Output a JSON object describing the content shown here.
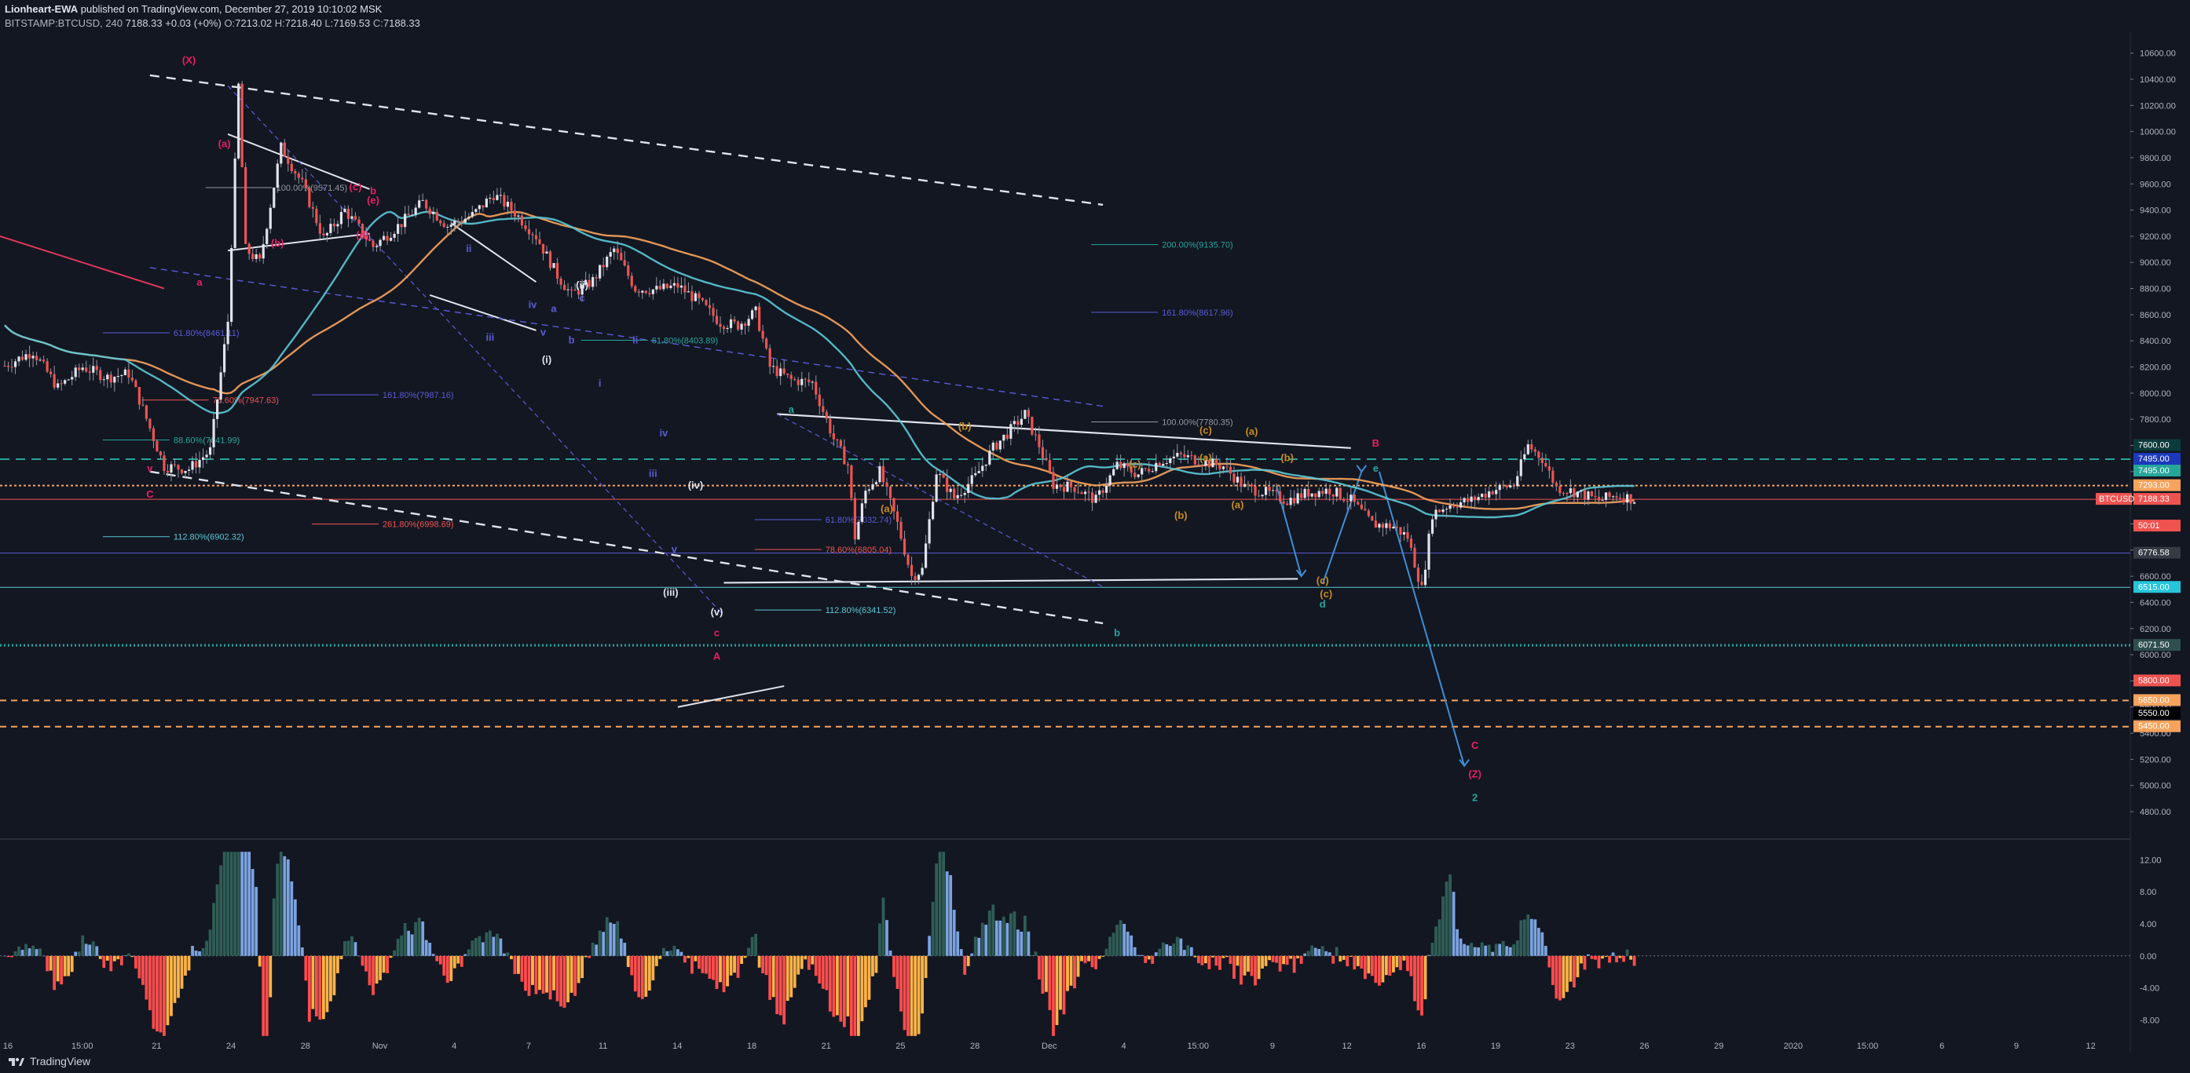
{
  "header": {
    "publisher": "Lionheart-EWA",
    "published_text": "published on TradingView.com, December 27, 2019 10:10:02 MSK",
    "symbol": "BITSTAMP:BTCUSD, 240",
    "last": "7188.33",
    "change": "+0.03 (+0%)",
    "o_label": "O:",
    "o": "7213.02",
    "h_label": "H:",
    "h": "7218.40",
    "l_label": "L:",
    "l": "7169.53",
    "c_label": "C:",
    "c": "7188.33"
  },
  "footer": {
    "brand": "TradingView"
  },
  "colors": {
    "background": "#131722",
    "up": "#e0e3eb",
    "down": "#ef5350",
    "ema_orange": "#f7a35c",
    "ema_cyan": "#5bc8d6",
    "red_line": "#e0385a",
    "wave_blue": "#5b5bd6",
    "magenta": "#e91e63",
    "teal": "#26a69a",
    "gold": "#c98b1f",
    "osc_dark": "#2f5d56",
    "osc_blue": "#7ba3e0",
    "osc_red": "#ff4d4d",
    "osc_orange": "#ffb347"
  },
  "chart_data": {
    "type": "candlestick",
    "symbol": "BTCUSD",
    "ylim": [
      4650,
      10700
    ],
    "y_ticks": [
      "10600.00",
      "10400.00",
      "10200.00",
      "10000.00",
      "9800.00",
      "9600.00",
      "9400.00",
      "9200.00",
      "9000.00",
      "8800.00",
      "8600.00",
      "8400.00",
      "8200.00",
      "8000.00",
      "7800.00",
      "7600.00",
      "7400.00",
      "7200.00",
      "7000.00",
      "6800.00",
      "6600.00",
      "6400.00",
      "6200.00",
      "6000.00",
      "5800.00",
      "5600.00",
      "5400.00",
      "5200.00",
      "5000.00",
      "4800.00"
    ],
    "x_ticks": [
      "16",
      "15:00",
      "21",
      "24",
      "28",
      "Nov",
      "4",
      "7",
      "11",
      "14",
      "18",
      "21",
      "25",
      "28",
      "Dec",
      "4",
      "15:00",
      "9",
      "12",
      "16",
      "19",
      "23",
      "26",
      "29",
      "2020",
      "15:00",
      "6",
      "9",
      "12"
    ],
    "price_path": [
      [
        0,
        8210
      ],
      [
        8,
        8320
      ],
      [
        15,
        8040
      ],
      [
        22,
        8200
      ],
      [
        29,
        8120
      ],
      [
        35,
        8150
      ],
      [
        38,
        7950
      ],
      [
        45,
        7440
      ],
      [
        52,
        7420
      ],
      [
        58,
        7560
      ],
      [
        63,
        8550
      ],
      [
        66,
        10350
      ],
      [
        68,
        9100
      ],
      [
        72,
        9000
      ],
      [
        78,
        9880
      ],
      [
        84,
        9600
      ],
      [
        90,
        9180
      ],
      [
        96,
        9400
      ],
      [
        104,
        9120
      ],
      [
        112,
        9300
      ],
      [
        118,
        9460
      ],
      [
        125,
        9280
      ],
      [
        132,
        9360
      ],
      [
        138,
        9520
      ],
      [
        144,
        9380
      ],
      [
        150,
        9200
      ],
      [
        156,
        8900
      ],
      [
        160,
        8750
      ],
      [
        166,
        8860
      ],
      [
        172,
        9100
      ],
      [
        178,
        8800
      ],
      [
        184,
        8790
      ],
      [
        190,
        8820
      ],
      [
        196,
        8700
      ],
      [
        202,
        8540
      ],
      [
        207,
        8520
      ],
      [
        212,
        8620
      ],
      [
        216,
        8200
      ],
      [
        222,
        8100
      ],
      [
        228,
        8080
      ],
      [
        234,
        7650
      ],
      [
        238,
        7450
      ],
      [
        240,
        6900
      ],
      [
        243,
        7250
      ],
      [
        247,
        7400
      ],
      [
        252,
        7000
      ],
      [
        256,
        6600
      ],
      [
        259,
        6650
      ],
      [
        263,
        7400
      ],
      [
        268,
        7200
      ],
      [
        274,
        7360
      ],
      [
        279,
        7580
      ],
      [
        284,
        7720
      ],
      [
        288,
        7840
      ],
      [
        292,
        7600
      ],
      [
        296,
        7300
      ],
      [
        302,
        7280
      ],
      [
        308,
        7180
      ],
      [
        314,
        7450
      ],
      [
        320,
        7380
      ],
      [
        326,
        7480
      ],
      [
        332,
        7520
      ],
      [
        338,
        7480
      ],
      [
        344,
        7440
      ],
      [
        350,
        7280
      ],
      [
        356,
        7240
      ],
      [
        362,
        7180
      ],
      [
        368,
        7240
      ],
      [
        374,
        7260
      ],
      [
        380,
        7180
      ],
      [
        386,
        7000
      ],
      [
        392,
        6980
      ],
      [
        396,
        6900
      ],
      [
        398,
        6700
      ],
      [
        400,
        6500
      ],
      [
        403,
        7080
      ],
      [
        408,
        7150
      ],
      [
        414,
        7180
      ],
      [
        420,
        7260
      ],
      [
        426,
        7300
      ],
      [
        430,
        7600
      ],
      [
        434,
        7500
      ],
      [
        438,
        7280
      ],
      [
        444,
        7240
      ],
      [
        450,
        7180
      ],
      [
        455,
        7220
      ],
      [
        460,
        7188
      ]
    ],
    "current_price": 7188.33,
    "price_labels": [
      {
        "price": 7600.0,
        "text": "7600.00",
        "color": "#0d3b3b"
      },
      {
        "price": 7495.0,
        "text": "7495.00",
        "color": "#1c39bb"
      },
      {
        "price": 7495.0,
        "text": "7495.00",
        "color": "#26a69a",
        "offset": 15
      },
      {
        "price": 7293.0,
        "text": "7293.00",
        "color": "#f7a35c"
      },
      {
        "price": 7188.33,
        "text": "7188.33",
        "color": "#ef5350"
      },
      {
        "price": 7188.33,
        "text": "50:01",
        "color": "#ef5350",
        "offset": 34
      },
      {
        "price": 6776.58,
        "text": "6776.58",
        "color": "#363a45"
      },
      {
        "price": 6515.0,
        "text": "6515.00",
        "color": "#26c6da"
      },
      {
        "price": 6071.5,
        "text": "6071.50",
        "color": "#2f4f4f"
      },
      {
        "price": 5800.0,
        "text": "5800.00",
        "color": "#ef5350"
      },
      {
        "price": 5650.0,
        "text": "5650.00",
        "color": "#f7a35c"
      },
      {
        "price": 5550.0,
        "text": "5550.00",
        "color": "#000000"
      },
      {
        "price": 5450.0,
        "text": "5450.00",
        "color": "#f7a35c"
      }
    ],
    "symbol_tag": "BTCUSD",
    "fib_levels": [
      {
        "text": "100.00%(9571.45)",
        "price": 9571.45
      },
      {
        "text": "61.80%(8461.11)",
        "price": 8461.11
      },
      {
        "text": "78.60%(7947.63)",
        "price": 7947.63
      },
      {
        "text": "88.60%(7641.99)",
        "price": 7641.99
      },
      {
        "text": "112.80%(6902.32)",
        "price": 6902.32
      },
      {
        "text": "161.80%(7987.16)",
        "price": 7987.16
      },
      {
        "text": "261.80%(6998.69)",
        "price": 6998.69
      },
      {
        "text": "61.80%(8403.89)",
        "price": 8403.89
      },
      {
        "text": "200.00%(9135.70)",
        "price": 9135.7
      },
      {
        "text": "161.80%(8617.96)",
        "price": 8617.96
      },
      {
        "text": "100.00%(7780.35)",
        "price": 7780.35
      },
      {
        "text": "61.80%(7032.74)",
        "price": 7032.74
      },
      {
        "text": "78.60%(6805.04)",
        "price": 6805.04
      },
      {
        "text": "112.80%(6341.52)",
        "price": 6341.52
      }
    ],
    "wave_labels": [
      "(X)",
      "(a)",
      "(b)",
      "(c)",
      "b",
      "(d)",
      "(e)",
      "a",
      "C",
      "v",
      "ii",
      "iii",
      "iv",
      "v",
      "(i)",
      "(ii)",
      "a",
      "b",
      "c",
      "i",
      "ii",
      "iii",
      "iv",
      "v",
      "(iii)",
      "(iv)",
      "(v)",
      "c",
      "A",
      "a",
      "(a)",
      "(b)",
      "(c)",
      "b",
      "(a)",
      "(b)",
      "(c)",
      "(a)",
      "(b)",
      "(c)",
      "(a)",
      "(c)",
      "d",
      "B",
      "e",
      "C",
      "(Z)",
      "2"
    ],
    "oscillator": {
      "y_ticks": [
        "12.00",
        "8.00",
        "4.00",
        "0.00",
        "-4.00",
        "-8.00"
      ],
      "ylim": [
        -11,
        14
      ]
    }
  }
}
